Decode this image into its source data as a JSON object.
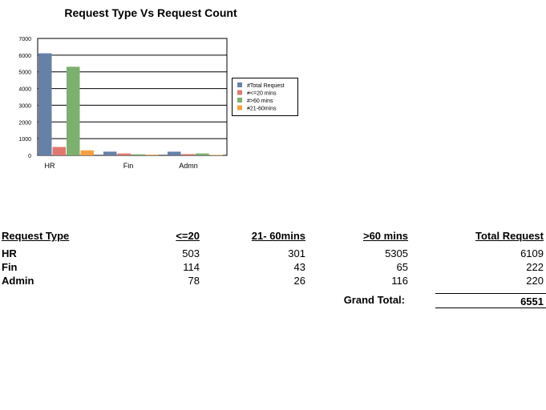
{
  "chart_data": {
    "type": "bar",
    "title": "Request Type Vs Request Count",
    "categories": [
      "HR",
      "Fin",
      "Admn"
    ],
    "ylim": [
      0,
      7000
    ],
    "yticks": [
      "0",
      "1000",
      "2000",
      "3000",
      "4000",
      "5000",
      "6000",
      "7000"
    ],
    "grid": true,
    "legend_position": "right",
    "series": [
      {
        "name": "#Total Request",
        "color": "#6680a8",
        "values": [
          6109,
          222,
          220
        ]
      },
      {
        "name": "#<=20 mins",
        "color": "#e07870",
        "values": [
          503,
          114,
          78
        ]
      },
      {
        "name": "#>60 mins",
        "color": "#7cb06e",
        "values": [
          5305,
          65,
          116
        ]
      },
      {
        "name": "#21-60mins",
        "color": "#f8a040",
        "values": [
          301,
          43,
          26
        ]
      }
    ]
  },
  "table": {
    "headers": [
      "Request Type",
      "<=20",
      "21- 60mins",
      ">60 mins",
      "Total Request"
    ],
    "rows": [
      [
        "HR",
        "503",
        "301",
        "5305",
        "6109"
      ],
      [
        "Fin",
        "114",
        "43",
        "65",
        "222"
      ],
      [
        "Admin",
        "78",
        "26",
        "116",
        "220"
      ]
    ],
    "grand_total_label": "Grand Total:",
    "grand_total_value": "6551"
  }
}
